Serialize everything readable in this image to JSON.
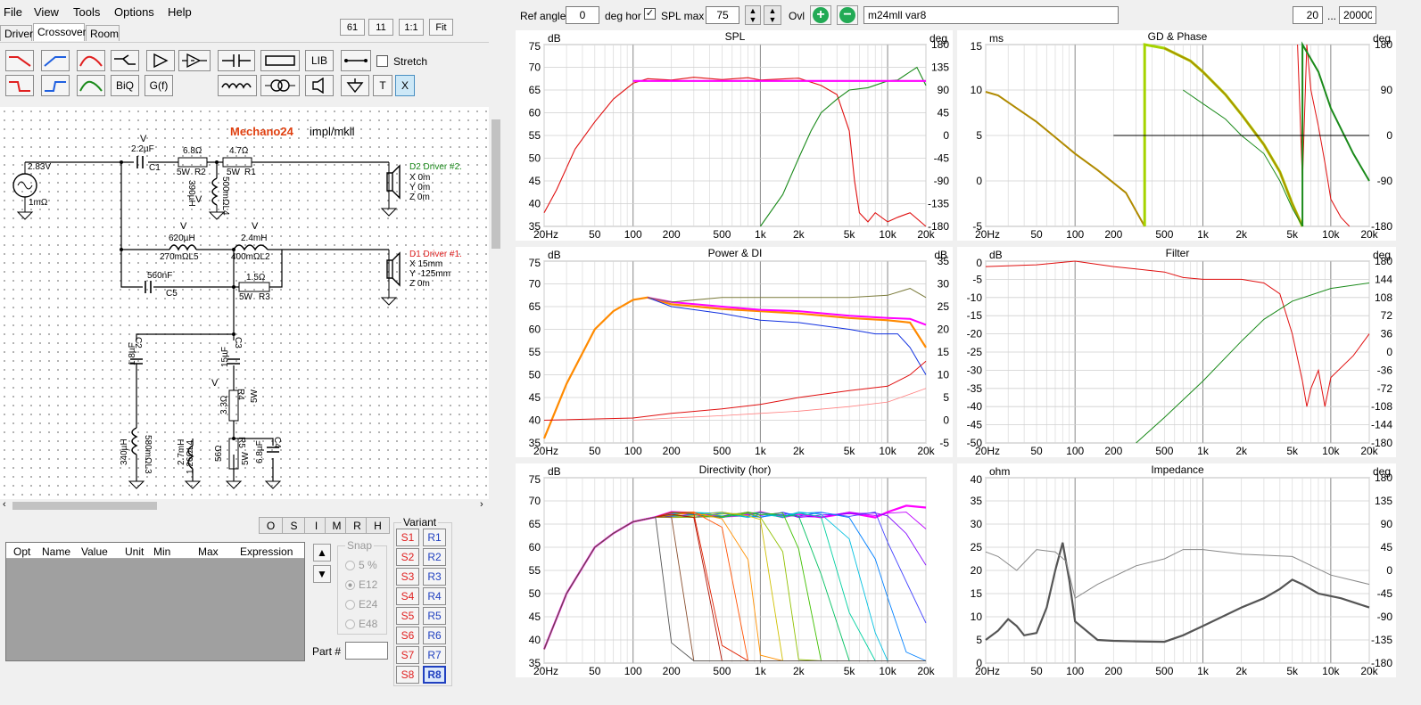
{
  "menu": {
    "items": [
      "File",
      "View",
      "Tools",
      "Options",
      "Help"
    ]
  },
  "tabs": [
    "Drivers",
    "Crossover",
    "Room"
  ],
  "top_buttons": [
    "61",
    "11",
    "1:1",
    "Fit"
  ],
  "toolbar": {
    "lib": "LIB",
    "stretch": "Stretch",
    "biq": "BiQ",
    "gf": "G(f)",
    "t": "T",
    "x": "X"
  },
  "schematic": {
    "title": "Mechano24",
    "subtitle": "impl/mkll",
    "source": {
      "voltage": "2.83V",
      "resistance": "1mΩ"
    },
    "components": [
      {
        "text": "2.2µF"
      },
      {
        "text": "C1"
      },
      {
        "text": "6.8Ω"
      },
      {
        "text": "5W"
      },
      {
        "text": "R2"
      },
      {
        "text": "4.7Ω"
      },
      {
        "text": "5W"
      },
      {
        "text": "R1"
      },
      {
        "text": "390µH"
      },
      {
        "text": "500mΩL4"
      },
      {
        "text": "620µH"
      },
      {
        "text": "270mΩL5"
      },
      {
        "text": "2.4mH"
      },
      {
        "text": "400mΩL2"
      },
      {
        "text": "560nF"
      },
      {
        "text": "C5"
      },
      {
        "text": "1.5Ω"
      },
      {
        "text": "5W"
      },
      {
        "text": "R3"
      },
      {
        "text": "1.8µF"
      },
      {
        "text": "C2"
      },
      {
        "text": "15µF"
      },
      {
        "text": "C3"
      },
      {
        "text": "3.3Ω"
      },
      {
        "text": "5W"
      },
      {
        "text": "R4"
      },
      {
        "text": "340µH"
      },
      {
        "text": "580mΩL3"
      },
      {
        "text": "2.7mH"
      },
      {
        "text": "1.26ΩL4"
      },
      {
        "text": "56Ω"
      },
      {
        "text": "5W"
      },
      {
        "text": "R5"
      },
      {
        "text": "6.8µF"
      },
      {
        "text": "C4"
      },
      {
        "text": "V"
      },
      {
        "text": "V"
      },
      {
        "text": "V"
      },
      {
        "text": "V"
      },
      {
        "text": "V"
      }
    ],
    "driver2": {
      "name": "D2 Driver #2.",
      "x": "X 0m",
      "y": "Y 0m",
      "z": "Z 0m"
    },
    "driver1": {
      "name": "D1 Driver #1.",
      "x": "X 15mm",
      "y": "Y -125mm",
      "z": "Z 0m"
    }
  },
  "opt_buttons": [
    "O",
    "S",
    "I",
    "M",
    "R",
    "H"
  ],
  "table": {
    "headers": [
      "Opt",
      "Name",
      "Value",
      "Unit",
      "Min",
      "Max",
      "Expression"
    ]
  },
  "snap": {
    "label": "Snap",
    "options": [
      "5 %",
      "E12",
      "E24",
      "E48"
    ]
  },
  "part_label": "Part #",
  "variant": {
    "label": "Variant",
    "s": [
      "S1",
      "S2",
      "S3",
      "S4",
      "S5",
      "S6",
      "S7",
      "S8"
    ],
    "r": [
      "R1",
      "R2",
      "R3",
      "R4",
      "R5",
      "R6",
      "R7",
      "R8"
    ],
    "selected": "R8"
  },
  "topbar": {
    "ref_angle_label": "Ref angle",
    "ref_angle_value": "0",
    "deg_hor": "deg hor",
    "spl_max_label": "SPL max",
    "spl_max_value": "75",
    "ovl": "Ovl",
    "name_value": "m24mll var8",
    "fmin": "20",
    "dots": "...",
    "fmax": "20000"
  },
  "freq_ticks": [
    "20Hz",
    "50",
    "100",
    "200",
    "500",
    "1k",
    "2k",
    "5k",
    "10k",
    "20k"
  ],
  "charts": {
    "spl": {
      "title": "SPL",
      "left_unit": "dB",
      "right_unit": "deg",
      "left_ticks": [
        "75",
        "70",
        "65",
        "60",
        "55",
        "50",
        "45",
        "40",
        "35"
      ],
      "right_ticks": [
        "180",
        "135",
        "90",
        "45",
        "0",
        "-45",
        "-90",
        "-135",
        "-180"
      ]
    },
    "gd": {
      "title": "GD & Phase",
      "left_unit": "ms",
      "right_unit": "deg",
      "left_ticks": [
        "15",
        "10",
        "5",
        "0",
        "-5"
      ],
      "right_ticks": [
        "180",
        "90",
        "0",
        "-90",
        "-180"
      ]
    },
    "power": {
      "title": "Power & DI",
      "left_unit": "dB",
      "right_unit": "dB",
      "left_ticks": [
        "75",
        "70",
        "65",
        "60",
        "55",
        "50",
        "45",
        "40",
        "35"
      ],
      "right_ticks": [
        "35",
        "30",
        "25",
        "20",
        "15",
        "10",
        "5",
        "0",
        "-5"
      ]
    },
    "filter": {
      "title": "Filter",
      "left_unit": "dB",
      "right_unit": "deg",
      "left_ticks": [
        "0",
        "-5",
        "-10",
        "-15",
        "-20",
        "-25",
        "-30",
        "-35",
        "-40",
        "-45",
        "-50"
      ],
      "right_ticks": [
        "180",
        "144",
        "108",
        "72",
        "36",
        "0",
        "-36",
        "-72",
        "-108",
        "-144",
        "-180"
      ]
    },
    "directivity": {
      "title": "Directivity (hor)",
      "left_unit": "dB",
      "right_unit": "",
      "left_ticks": [
        "75",
        "70",
        "65",
        "60",
        "55",
        "50",
        "45",
        "40",
        "35"
      ],
      "right_ticks": []
    },
    "impedance": {
      "title": "Impedance",
      "left_unit": "ohm",
      "right_unit": "deg",
      "left_ticks": [
        "40",
        "35",
        "30",
        "25",
        "20",
        "15",
        "10",
        "5",
        "0"
      ],
      "right_ticks": [
        "180",
        "135",
        "90",
        "45",
        "0",
        "-45",
        "-90",
        "-135",
        "-180"
      ]
    }
  },
  "colors": {
    "pink": "#ff00ff",
    "red": "#e01010",
    "green": "#1a8a1a",
    "olive": "#b08a00",
    "grid": "#c8c8c8",
    "plus": "#22aa55"
  }
}
